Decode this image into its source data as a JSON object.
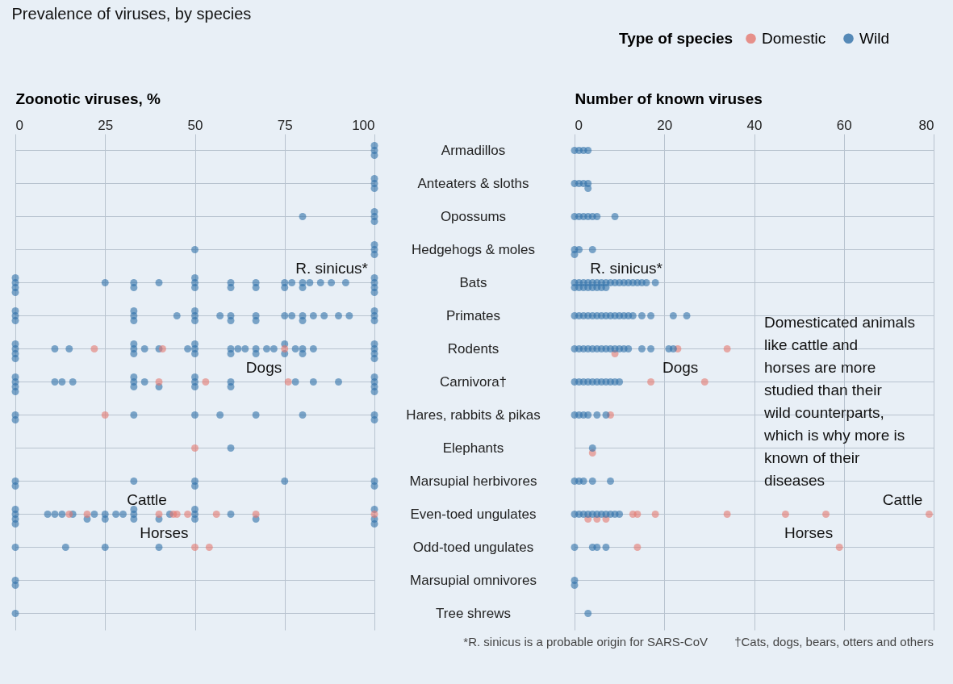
{
  "chart_data": [
    {
      "type": "scatter",
      "orientation": "horizontal",
      "title": "Prevalence of viruses, by species",
      "xlabel": "Zoonotic viruses, %",
      "xlim": [
        0,
        100
      ],
      "xticks": [
        0,
        25,
        50,
        75,
        100
      ],
      "grid": true,
      "legend": false,
      "marker": "circle",
      "categories": [
        "Armadillos",
        "Anteaters & sloths",
        "Opossums",
        "Hedgehogs & moles",
        "Bats",
        "Primates",
        "Rodents",
        "Carnivora†",
        "Hares, rabbits & pikas",
        "Elephants",
        "Marsupial herbivores",
        "Even-toed ungulates",
        "Odd-toed ungulates",
        "Marsupial omnivores",
        "Tree shrews"
      ],
      "series": [
        {
          "color": "#2f6fa8",
          "x": [
            "Armadillos",
            "Armadillos",
            "Armadillos",
            "Anteaters & sloths",
            "Anteaters & sloths",
            "Anteaters & sloths",
            "Opossums",
            "Opossums",
            "Opossums",
            "Opossums",
            "Hedgehogs & moles",
            "Hedgehogs & moles",
            "Hedgehogs & moles",
            "Hedgehogs & moles",
            "Bats",
            "Bats",
            "Bats",
            "Bats",
            "Bats",
            "Bats",
            "Bats",
            "Bats",
            "Bats",
            "Bats",
            "Bats",
            "Bats",
            "Bats",
            "Bats",
            "Bats",
            "Bats",
            "Bats",
            "Bats",
            "Bats",
            "Bats",
            "Bats",
            "Bats",
            "Bats",
            "Bats",
            "Bats",
            "Bats",
            "Bats",
            "Bats",
            "Primates",
            "Primates",
            "Primates",
            "Primates",
            "Primates",
            "Primates",
            "Primates",
            "Primates",
            "Primates",
            "Primates",
            "Primates",
            "Primates",
            "Primates",
            "Primates",
            "Primates",
            "Primates",
            "Primates",
            "Primates",
            "Primates",
            "Primates",
            "Primates",
            "Primates",
            "Primates",
            "Primates",
            "Primates",
            "Primates",
            "Rodents",
            "Rodents",
            "Rodents",
            "Rodents",
            "Rodents",
            "Rodents",
            "Rodents",
            "Rodents",
            "Rodents",
            "Rodents",
            "Rodents",
            "Rodents",
            "Rodents",
            "Rodents",
            "Rodents",
            "Rodents",
            "Rodents",
            "Rodents",
            "Rodents",
            "Rodents",
            "Rodents",
            "Rodents",
            "Rodents",
            "Rodents",
            "Rodents",
            "Rodents",
            "Rodents",
            "Rodents",
            "Rodents",
            "Rodents",
            "Rodents",
            "Rodents",
            "Rodents",
            "Carnivora†",
            "Carnivora†",
            "Carnivora†",
            "Carnivora†",
            "Carnivora†",
            "Carnivora†",
            "Carnivora†",
            "Carnivora†",
            "Carnivora†",
            "Carnivora†",
            "Carnivora†",
            "Carnivora†",
            "Carnivora†",
            "Carnivora†",
            "Carnivora†",
            "Carnivora†",
            "Carnivora†",
            "Carnivora†",
            "Carnivora†",
            "Carnivora†",
            "Carnivora†",
            "Carnivora†",
            "Carnivora†",
            "Carnivora†",
            "Hares, rabbits & pikas",
            "Hares, rabbits & pikas",
            "Hares, rabbits & pikas",
            "Hares, rabbits & pikas",
            "Hares, rabbits & pikas",
            "Hares, rabbits & pikas",
            "Hares, rabbits & pikas",
            "Hares, rabbits & pikas",
            "Hares, rabbits & pikas",
            "Elephants",
            "Marsupial herbivores",
            "Marsupial herbivores",
            "Marsupial herbivores",
            "Marsupial herbivores",
            "Marsupial herbivores",
            "Marsupial herbivores",
            "Marsupial herbivores",
            "Marsupial herbivores",
            "Even-toed ungulates",
            "Even-toed ungulates",
            "Even-toed ungulates",
            "Even-toed ungulates",
            "Even-toed ungulates",
            "Even-toed ungulates",
            "Even-toed ungulates",
            "Even-toed ungulates",
            "Even-toed ungulates",
            "Even-toed ungulates",
            "Even-toed ungulates",
            "Even-toed ungulates",
            "Even-toed ungulates",
            "Even-toed ungulates",
            "Even-toed ungulates",
            "Even-toed ungulates",
            "Even-toed ungulates",
            "Even-toed ungulates",
            "Even-toed ungulates",
            "Even-toed ungulates",
            "Even-toed ungulates",
            "Even-toed ungulates",
            "Even-toed ungulates",
            "Even-toed ungulates",
            "Even-toed ungulates",
            "Even-toed ungulates",
            "Even-toed ungulates",
            "Odd-toed ungulates",
            "Odd-toed ungulates",
            "Odd-toed ungulates",
            "Odd-toed ungulates",
            "Marsupial omnivores",
            "Marsupial omnivores",
            "Tree shrews"
          ],
          "values": [
            100,
            100,
            100,
            100,
            100,
            100,
            80,
            100,
            100,
            100,
            50,
            100,
            100,
            100,
            0,
            0,
            0,
            0,
            25,
            33,
            33,
            40,
            50,
            50,
            50,
            60,
            60,
            67,
            67,
            75,
            75,
            77,
            80,
            80,
            82,
            85,
            88,
            92,
            100,
            100,
            100,
            100,
            0,
            0,
            0,
            33,
            33,
            33,
            45,
            50,
            50,
            50,
            57,
            60,
            60,
            67,
            67,
            75,
            77,
            80,
            80,
            83,
            86,
            90,
            93,
            100,
            100,
            100,
            0,
            0,
            0,
            0,
            11,
            15,
            33,
            33,
            33,
            36,
            40,
            48,
            50,
            50,
            50,
            60,
            60,
            62,
            64,
            67,
            67,
            70,
            72,
            75,
            75,
            78,
            80,
            80,
            83,
            100,
            100,
            100,
            100,
            0,
            0,
            0,
            0,
            11,
            13,
            16,
            33,
            33,
            33,
            36,
            40,
            50,
            50,
            50,
            60,
            60,
            78,
            83,
            90,
            100,
            100,
            100,
            100,
            0,
            0,
            33,
            50,
            57,
            67,
            80,
            100,
            100,
            60,
            0,
            0,
            33,
            50,
            50,
            75,
            100,
            100,
            0,
            0,
            0,
            0,
            9,
            11,
            13,
            16,
            20,
            22,
            25,
            25,
            28,
            30,
            33,
            33,
            33,
            40,
            43,
            50,
            50,
            50,
            60,
            67,
            100,
            100,
            100,
            0,
            14,
            25,
            40,
            0,
            0,
            0
          ]
        },
        {
          "color": "#e5786f",
          "x": [
            "Rodents",
            "Rodents",
            "Rodents",
            "Carnivora†",
            "Carnivora†",
            "Carnivora†",
            "Hares, rabbits & pikas",
            "Elephants",
            "Even-toed ungulates",
            "Even-toed ungulates",
            "Even-toed ungulates",
            "Even-toed ungulates",
            "Even-toed ungulates",
            "Even-toed ungulates",
            "Even-toed ungulates",
            "Even-toed ungulates",
            "Even-toed ungulates",
            "Odd-toed ungulates",
            "Odd-toed ungulates"
          ],
          "values": [
            22,
            41,
            75,
            40,
            53,
            76,
            25,
            50,
            15,
            20,
            40,
            44,
            45,
            48,
            56,
            67,
            100,
            50,
            54
          ]
        }
      ],
      "annotations": [
        {
          "text": "R. sinicus*",
          "x": 100,
          "y": "Bats"
        },
        {
          "text": "Dogs",
          "x": 76,
          "y": "Carnivora†"
        },
        {
          "text": "Cattle",
          "x": 44,
          "y": "Even-toed ungulates"
        },
        {
          "text": "Horses",
          "x": 50,
          "y": "Odd-toed ungulates"
        }
      ]
    },
    {
      "type": "scatter",
      "orientation": "horizontal",
      "xlabel": "Number of known viruses",
      "xlim": [
        0,
        80
      ],
      "xticks": [
        0,
        20,
        40,
        60,
        80
      ],
      "grid": true,
      "legend": "top right",
      "legend_title": "Type of species",
      "marker": "circle",
      "tick_labels": "x",
      "categories": [
        "Armadillos",
        "Anteaters & sloths",
        "Opossums",
        "Hedgehogs & moles",
        "Bats",
        "Primates",
        "Rodents",
        "Carnivora†",
        "Hares, rabbits & pikas",
        "Elephants",
        "Marsupial herbivores",
        "Even-toed ungulates",
        "Odd-toed ungulates",
        "Marsupial omnivores",
        "Tree shrews"
      ],
      "series": [
        {
          "name": "Domestic",
          "color": "#e5786f",
          "x": [
            "Rodents",
            "Rodents",
            "Rodents",
            "Carnivora†",
            "Carnivora†",
            "Hares, rabbits & pikas",
            "Elephants",
            "Even-toed ungulates",
            "Even-toed ungulates",
            "Even-toed ungulates",
            "Even-toed ungulates",
            "Even-toed ungulates",
            "Even-toed ungulates",
            "Even-toed ungulates",
            "Even-toed ungulates",
            "Even-toed ungulates",
            "Even-toed ungulates",
            "Odd-toed ungulates",
            "Odd-toed ungulates"
          ],
          "values": [
            9,
            23,
            34,
            17,
            29,
            8,
            4,
            3,
            5,
            7,
            13,
            14,
            18,
            34,
            47,
            56,
            79,
            14,
            59
          ]
        },
        {
          "name": "Wild",
          "color": "#2f6fa8",
          "x": [
            "Armadillos",
            "Armadillos",
            "Armadillos",
            "Armadillos",
            "Anteaters & sloths",
            "Anteaters & sloths",
            "Anteaters & sloths",
            "Anteaters & sloths",
            "Anteaters & sloths",
            "Opossums",
            "Opossums",
            "Opossums",
            "Opossums",
            "Opossums",
            "Opossums",
            "Opossums",
            "Hedgehogs & moles",
            "Hedgehogs & moles",
            "Hedgehogs & moles",
            "Hedgehogs & moles",
            "Bats",
            "Bats",
            "Bats",
            "Bats",
            "Bats",
            "Bats",
            "Bats",
            "Bats",
            "Bats",
            "Bats",
            "Bats",
            "Bats",
            "Bats",
            "Bats",
            "Bats",
            "Bats",
            "Bats",
            "Bats",
            "Bats",
            "Bats",
            "Bats",
            "Bats",
            "Bats",
            "Bats",
            "Bats",
            "Bats",
            "Primates",
            "Primates",
            "Primates",
            "Primates",
            "Primates",
            "Primates",
            "Primates",
            "Primates",
            "Primates",
            "Primates",
            "Primates",
            "Primates",
            "Primates",
            "Primates",
            "Primates",
            "Primates",
            "Primates",
            "Primates",
            "Rodents",
            "Rodents",
            "Rodents",
            "Rodents",
            "Rodents",
            "Rodents",
            "Rodents",
            "Rodents",
            "Rodents",
            "Rodents",
            "Rodents",
            "Rodents",
            "Rodents",
            "Rodents",
            "Rodents",
            "Rodents",
            "Rodents",
            "Carnivora†",
            "Carnivora†",
            "Carnivora†",
            "Carnivora†",
            "Carnivora†",
            "Carnivora†",
            "Carnivora†",
            "Carnivora†",
            "Carnivora†",
            "Carnivora†",
            "Carnivora†",
            "Hares, rabbits & pikas",
            "Hares, rabbits & pikas",
            "Hares, rabbits & pikas",
            "Hares, rabbits & pikas",
            "Hares, rabbits & pikas",
            "Hares, rabbits & pikas",
            "Elephants",
            "Marsupial herbivores",
            "Marsupial herbivores",
            "Marsupial herbivores",
            "Marsupial herbivores",
            "Marsupial herbivores",
            "Even-toed ungulates",
            "Even-toed ungulates",
            "Even-toed ungulates",
            "Even-toed ungulates",
            "Even-toed ungulates",
            "Even-toed ungulates",
            "Even-toed ungulates",
            "Even-toed ungulates",
            "Even-toed ungulates",
            "Even-toed ungulates",
            "Even-toed ungulates",
            "Odd-toed ungulates",
            "Odd-toed ungulates",
            "Odd-toed ungulates",
            "Odd-toed ungulates",
            "Marsupial omnivores",
            "Marsupial omnivores",
            "Tree shrews"
          ],
          "values": [
            0,
            1,
            2,
            3,
            0,
            1,
            2,
            3,
            3,
            0,
            1,
            2,
            3,
            4,
            5,
            9,
            0,
            0,
            1,
            4,
            0,
            0,
            1,
            1,
            2,
            2,
            3,
            3,
            4,
            4,
            5,
            5,
            6,
            6,
            7,
            7,
            8,
            9,
            10,
            11,
            12,
            13,
            14,
            15,
            16,
            18,
            0,
            1,
            2,
            3,
            4,
            5,
            6,
            7,
            8,
            9,
            10,
            11,
            12,
            13,
            15,
            17,
            22,
            25,
            0,
            1,
            2,
            3,
            4,
            5,
            6,
            7,
            8,
            9,
            10,
            11,
            12,
            15,
            17,
            21,
            22,
            0,
            1,
            2,
            3,
            4,
            5,
            6,
            7,
            8,
            9,
            10,
            0,
            1,
            2,
            3,
            5,
            7,
            4,
            0,
            1,
            2,
            4,
            8,
            0,
            1,
            2,
            3,
            4,
            5,
            6,
            7,
            8,
            9,
            10,
            0,
            4,
            5,
            7,
            0,
            0,
            3
          ]
        }
      ],
      "annotations": [
        {
          "text": "R. sinicus*",
          "x": 2,
          "y": "Bats"
        },
        {
          "text": "Dogs",
          "x": 29,
          "y": "Carnivora†"
        },
        {
          "text": "Cattle",
          "x": 79,
          "y": "Even-toed ungulates"
        },
        {
          "text": "Horses",
          "x": 59,
          "y": "Odd-toed ungulates"
        },
        "Domesticated animals like cattle and horses are more studied than their wild counterparts, which is why more is known of their diseases",
        "*R. sinicus is a probable origin for SARS-CoV",
        "†Cats, dogs, bears, otters and others"
      ]
    }
  ]
}
